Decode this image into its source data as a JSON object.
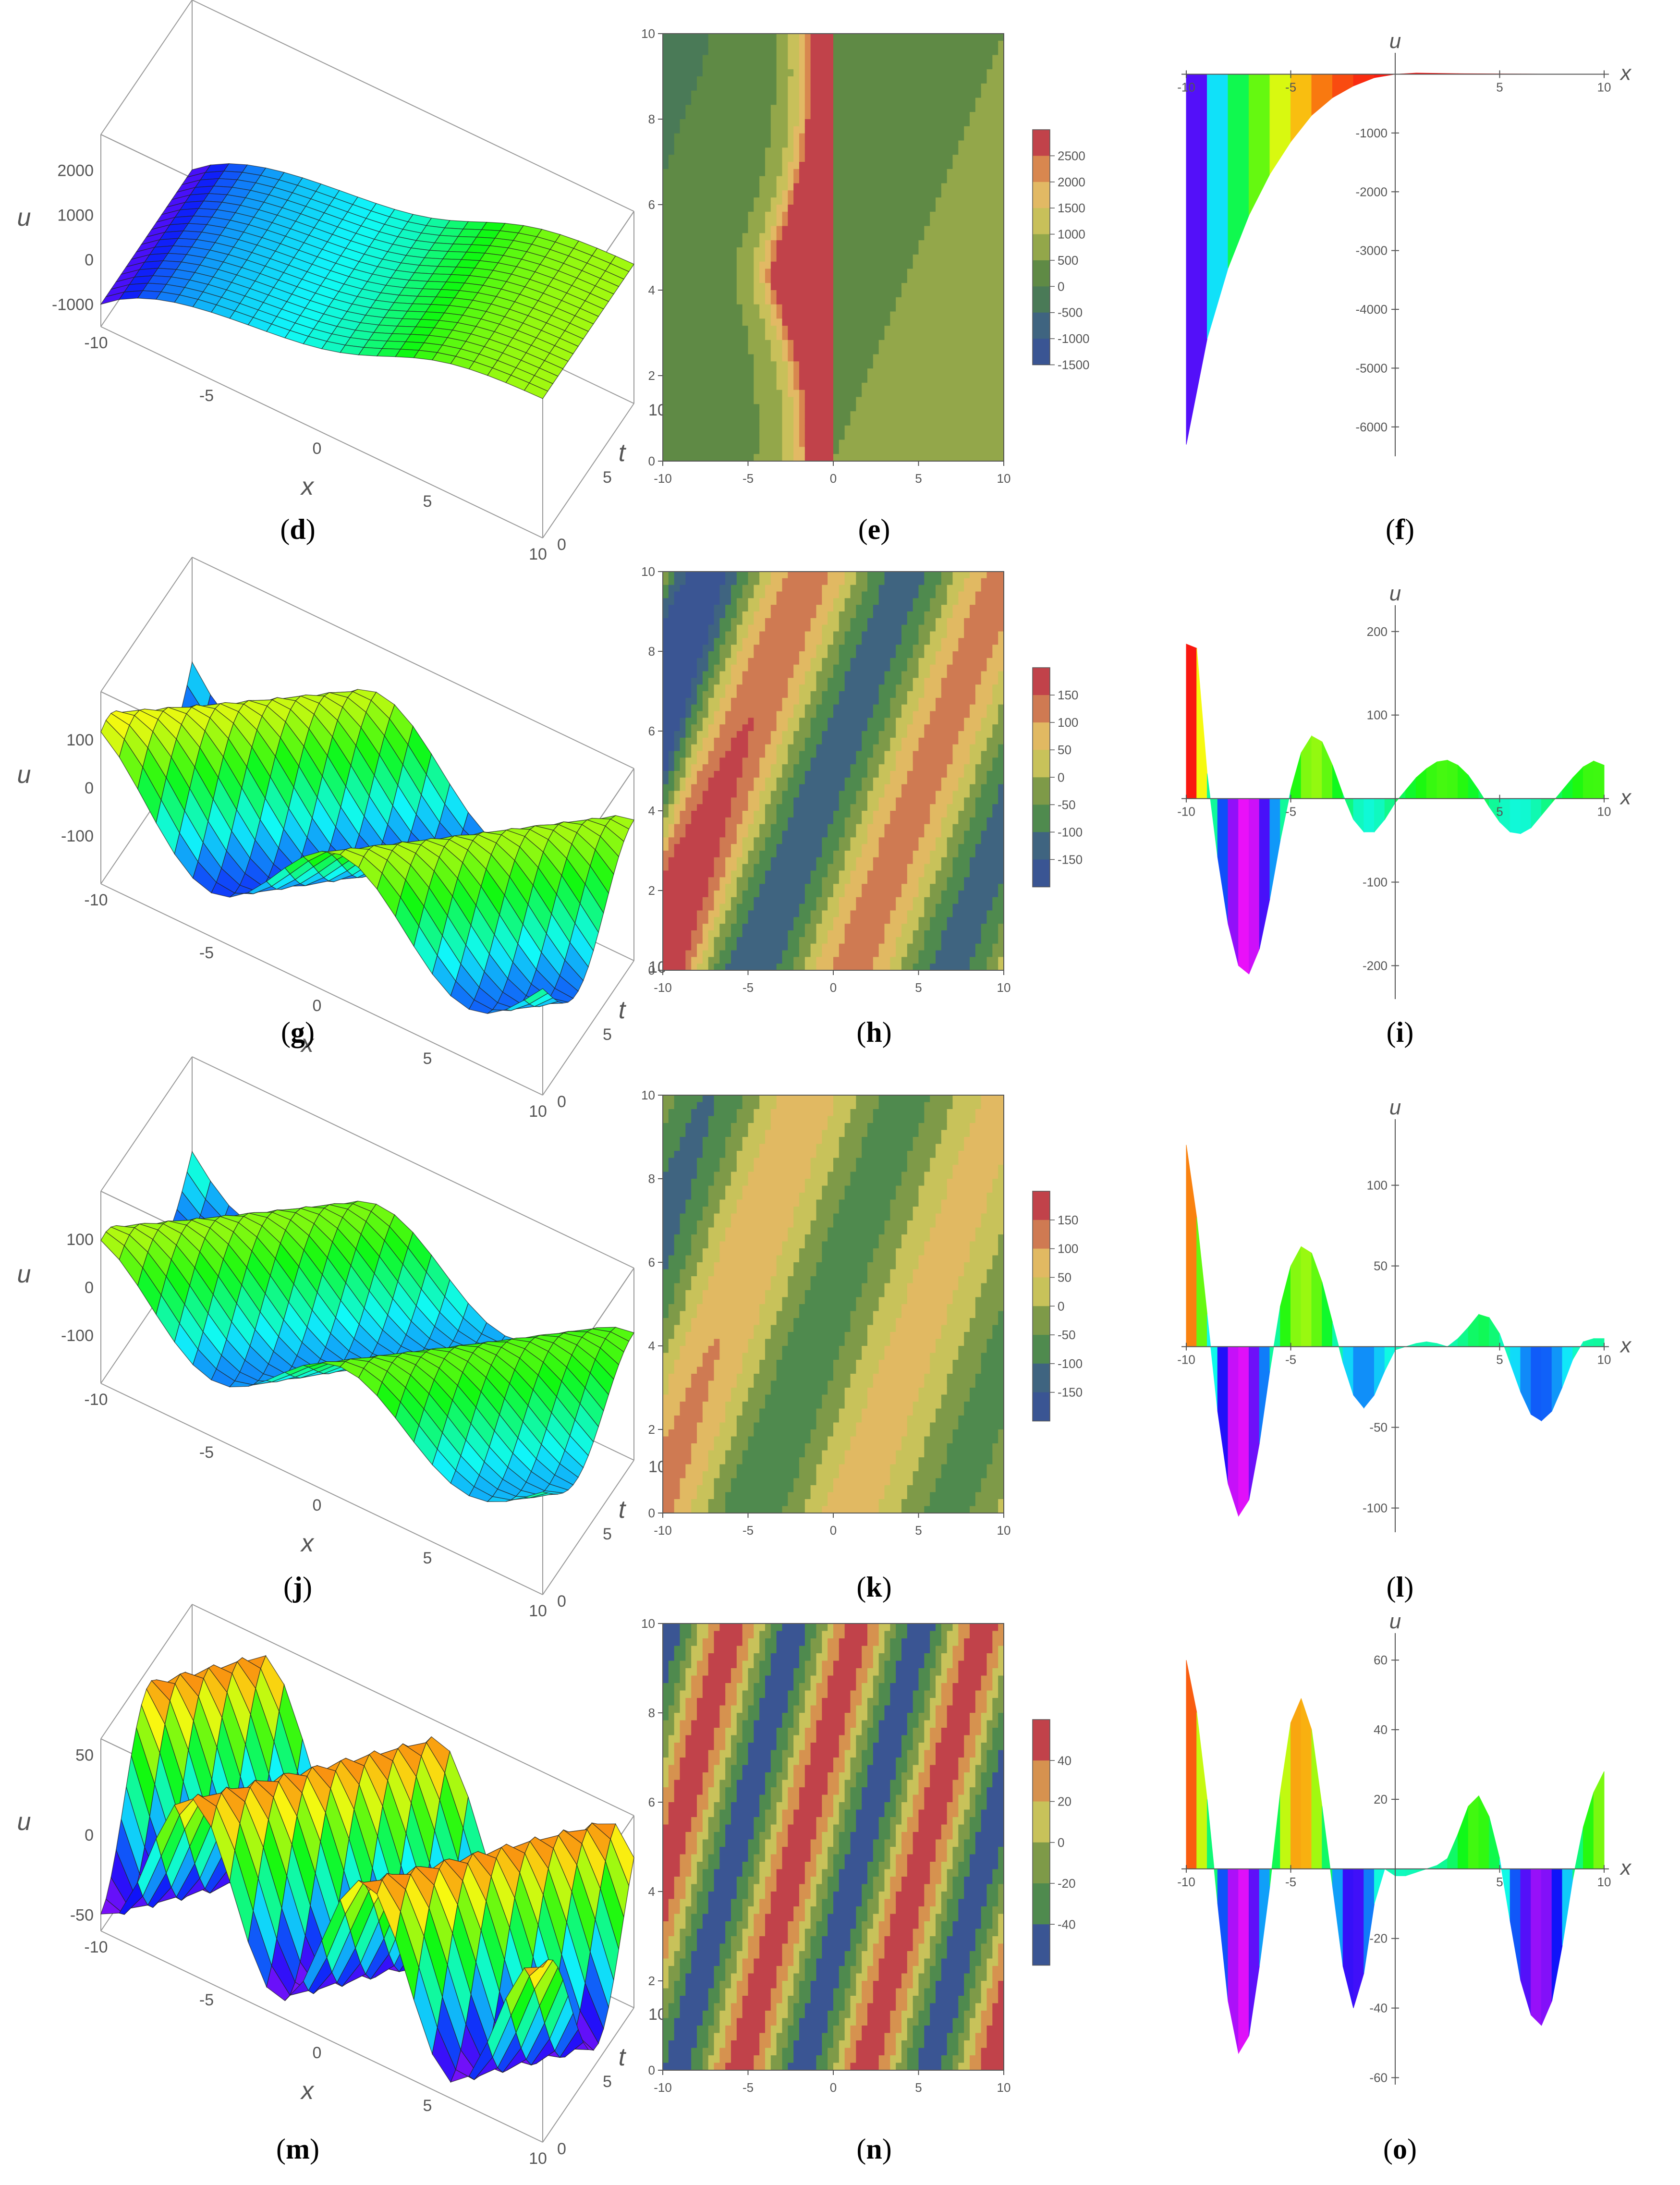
{
  "captions": [
    "d",
    "e",
    "f",
    "g",
    "h",
    "i",
    "j",
    "k",
    "l",
    "m",
    "n",
    "o"
  ],
  "chart_data": [
    {
      "id": "d",
      "type": "surface3d",
      "xlabel": "x",
      "ylabel": "t",
      "zlabel": "u",
      "x_ticks": [
        "-10",
        "-5",
        "0",
        "5",
        "10"
      ],
      "t_ticks": [
        "0",
        "5",
        "10"
      ],
      "z_ticks": [
        "2000",
        "1000",
        "0",
        "-1000"
      ],
      "xlim": [
        -10,
        10
      ],
      "tlim": [
        0,
        10
      ],
      "zlim": [
        -1500,
        2800
      ]
    },
    {
      "id": "e",
      "type": "contour",
      "xlim": [
        -10,
        10
      ],
      "ylim": [
        0,
        10
      ],
      "x_ticks": [
        "-10",
        "-5",
        "0",
        "5",
        "10"
      ],
      "y_ticks": [
        "0",
        "2",
        "4",
        "6",
        "8",
        "10"
      ],
      "legend_levels": [
        "2500",
        "2000",
        "1500",
        "1000",
        "500",
        "0",
        "-500",
        "-1000",
        "-1500"
      ],
      "legend_colors": [
        "#c1424a",
        "#d8874f",
        "#e2b964",
        "#c8c05a",
        "#93a74a",
        "#5f8a45",
        "#4a7a57",
        "#3f6480",
        "#3a5593"
      ]
    },
    {
      "id": "f",
      "type": "area",
      "xlabel": "x",
      "ylabel": "u",
      "xlim": [
        -10,
        10
      ],
      "ylim": [
        -6500,
        200
      ],
      "x_ticks": [
        "-10",
        "-5",
        "5",
        "10"
      ],
      "y_ticks": [
        "-1000",
        "-2000",
        "-3000",
        "-4000",
        "-5000",
        "-6000"
      ],
      "x": [
        -10,
        -9,
        -8,
        -7,
        -6,
        -5,
        -4,
        -3,
        -2,
        -1,
        0,
        1,
        2,
        3,
        4,
        5,
        6,
        7,
        8,
        9,
        10
      ],
      "y": [
        -6300,
        -4500,
        -3300,
        -2400,
        -1700,
        -1150,
        -700,
        -400,
        -200,
        -60,
        0,
        20,
        15,
        10,
        8,
        6,
        5,
        4,
        3,
        2,
        2
      ]
    },
    {
      "id": "g",
      "type": "surface3d",
      "xlabel": "x",
      "ylabel": "t",
      "zlabel": "u",
      "x_ticks": [
        "-10",
        "-5",
        "0",
        "5",
        "10"
      ],
      "t_ticks": [
        "0",
        "5",
        "10"
      ],
      "z_ticks": [
        "100",
        "0",
        "-100"
      ],
      "xlim": [
        -10,
        10
      ],
      "tlim": [
        0,
        10
      ],
      "zlim": [
        -200,
        200
      ]
    },
    {
      "id": "h",
      "type": "contour",
      "xlim": [
        -10,
        10
      ],
      "ylim": [
        0,
        10
      ],
      "x_ticks": [
        "-10",
        "-5",
        "0",
        "5",
        "10"
      ],
      "y_ticks": [
        "0",
        "2",
        "4",
        "6",
        "8",
        "10"
      ],
      "legend_levels": [
        "150",
        "100",
        "50",
        "0",
        "-50",
        "-100",
        "-150"
      ],
      "legend_colors": [
        "#c1424a",
        "#cf7a52",
        "#e1b962",
        "#c8c25a",
        "#7e9a48",
        "#4f8a4e",
        "#3f6480",
        "#3a5593"
      ]
    },
    {
      "id": "i",
      "type": "area",
      "xlabel": "x",
      "ylabel": "u",
      "xlim": [
        -10,
        10
      ],
      "ylim": [
        -240,
        220
      ],
      "x_ticks": [
        "-10",
        "-5",
        "5",
        "10"
      ],
      "y_ticks": [
        "200",
        "100",
        "-100",
        "-200"
      ],
      "x": [
        -10,
        -9.5,
        -9,
        -8.5,
        -8,
        -7.5,
        -7,
        -6.5,
        -6,
        -5.5,
        -5,
        -4.5,
        -4,
        -3.5,
        -3,
        -2.5,
        -2,
        -1.5,
        -1,
        -0.5,
        0,
        0.5,
        1,
        1.5,
        2,
        2.5,
        3,
        3.5,
        4,
        4.5,
        5,
        5.5,
        6,
        6.5,
        7,
        7.5,
        8,
        8.5,
        9,
        9.5,
        10
      ],
      "y": [
        185,
        180,
        30,
        -70,
        -150,
        -200,
        -210,
        -180,
        -120,
        -50,
        10,
        55,
        75,
        68,
        40,
        5,
        -25,
        -40,
        -40,
        -25,
        -5,
        10,
        25,
        36,
        44,
        46,
        40,
        28,
        10,
        -10,
        -28,
        -40,
        -42,
        -35,
        -20,
        -5,
        10,
        25,
        38,
        45,
        40
      ]
    },
    {
      "id": "j",
      "type": "surface3d",
      "xlabel": "x",
      "ylabel": "t",
      "zlabel": "u",
      "x_ticks": [
        "-10",
        "-5",
        "0",
        "5",
        "10"
      ],
      "t_ticks": [
        "0",
        "5",
        "10"
      ],
      "z_ticks": [
        "100",
        "0",
        "-100"
      ],
      "xlim": [
        -10,
        10
      ],
      "tlim": [
        0,
        10
      ],
      "zlim": [
        -200,
        200
      ]
    },
    {
      "id": "k",
      "type": "contour",
      "xlim": [
        -10,
        10
      ],
      "ylim": [
        0,
        10
      ],
      "x_ticks": [
        "-10",
        "-5",
        "0",
        "5",
        "10"
      ],
      "y_ticks": [
        "0",
        "2",
        "4",
        "6",
        "8",
        "10"
      ],
      "legend_levels": [
        "150",
        "100",
        "50",
        "0",
        "-50",
        "-100",
        "-150"
      ],
      "legend_colors": [
        "#c1424a",
        "#cf7a52",
        "#e1b962",
        "#c8c25a",
        "#7e9a48",
        "#4f8a4e",
        "#3f6480",
        "#3a5593"
      ]
    },
    {
      "id": "l",
      "type": "area",
      "xlabel": "x",
      "ylabel": "u",
      "xlim": [
        -10,
        10
      ],
      "ylim": [
        -115,
        135
      ],
      "x_ticks": [
        "-10",
        "-5",
        "5",
        "10"
      ],
      "y_ticks": [
        "100",
        "50",
        "-50",
        "-100"
      ],
      "x": [
        -10,
        -9.5,
        -9,
        -8.5,
        -8,
        -7.5,
        -7,
        -6.5,
        -6,
        -5.5,
        -5,
        -4.5,
        -4,
        -3.5,
        -3,
        -2.5,
        -2,
        -1.5,
        -1,
        -0.5,
        0,
        0.5,
        1,
        1.5,
        2,
        2.5,
        3,
        3.5,
        4,
        4.5,
        5,
        5.5,
        6,
        6.5,
        7,
        7.5,
        8,
        8.5,
        9,
        9.5,
        10
      ],
      "y": [
        125,
        80,
        20,
        -40,
        -85,
        -105,
        -95,
        -60,
        -15,
        25,
        50,
        62,
        58,
        40,
        15,
        -10,
        -30,
        -38,
        -30,
        -15,
        -2,
        0,
        2,
        3,
        2,
        0,
        5,
        12,
        20,
        18,
        8,
        -10,
        -28,
        -42,
        -46,
        -40,
        -25,
        -8,
        3,
        5,
        5
      ]
    },
    {
      "id": "m",
      "type": "surface3d",
      "xlabel": "x",
      "ylabel": "t",
      "zlabel": "u",
      "x_ticks": [
        "-10",
        "-5",
        "0",
        "5",
        "10"
      ],
      "t_ticks": [
        "0",
        "5",
        "10"
      ],
      "z_ticks": [
        "50",
        "0",
        "-50"
      ],
      "xlim": [
        -10,
        10
      ],
      "tlim": [
        0,
        10
      ],
      "zlim": [
        -60,
        60
      ]
    },
    {
      "id": "n",
      "type": "contour",
      "xlim": [
        -10,
        10
      ],
      "ylim": [
        0,
        10
      ],
      "x_ticks": [
        "-10",
        "-5",
        "0",
        "5",
        "10"
      ],
      "y_ticks": [
        "0",
        "2",
        "4",
        "6",
        "8",
        "10"
      ],
      "legend_levels": [
        "40",
        "20",
        "0",
        "-20",
        "-40"
      ],
      "legend_colors": [
        "#c1424a",
        "#d6924f",
        "#c8c25a",
        "#7e9a48",
        "#4f8a4e",
        "#3a5593"
      ]
    },
    {
      "id": "o",
      "type": "area",
      "xlabel": "x",
      "ylabel": "u",
      "xlim": [
        -10,
        10
      ],
      "ylim": [
        -62,
        65
      ],
      "x_ticks": [
        "-10",
        "-5",
        "5",
        "10"
      ],
      "y_ticks": [
        "60",
        "40",
        "20",
        "-20",
        "-40",
        "-60"
      ],
      "x": [
        -10,
        -9.5,
        -9,
        -8.5,
        -8,
        -7.5,
        -7,
        -6.5,
        -6,
        -5.5,
        -5,
        -4.5,
        -4,
        -3.5,
        -3,
        -2.5,
        -2,
        -1.5,
        -1,
        -0.5,
        0,
        0.5,
        1,
        1.5,
        2,
        2.5,
        3,
        3.5,
        4,
        4.5,
        5,
        5.5,
        6,
        6.5,
        7,
        7.5,
        8,
        8.5,
        9,
        9.5,
        10
      ],
      "y": [
        60,
        45,
        20,
        -10,
        -38,
        -53,
        -48,
        -28,
        -5,
        22,
        42,
        49,
        40,
        18,
        -5,
        -28,
        -40,
        -30,
        -10,
        0,
        -2,
        -2,
        -1,
        0,
        1,
        3,
        10,
        18,
        21,
        15,
        3,
        -15,
        -32,
        -42,
        -45,
        -38,
        -22,
        -3,
        12,
        22,
        28
      ]
    }
  ]
}
